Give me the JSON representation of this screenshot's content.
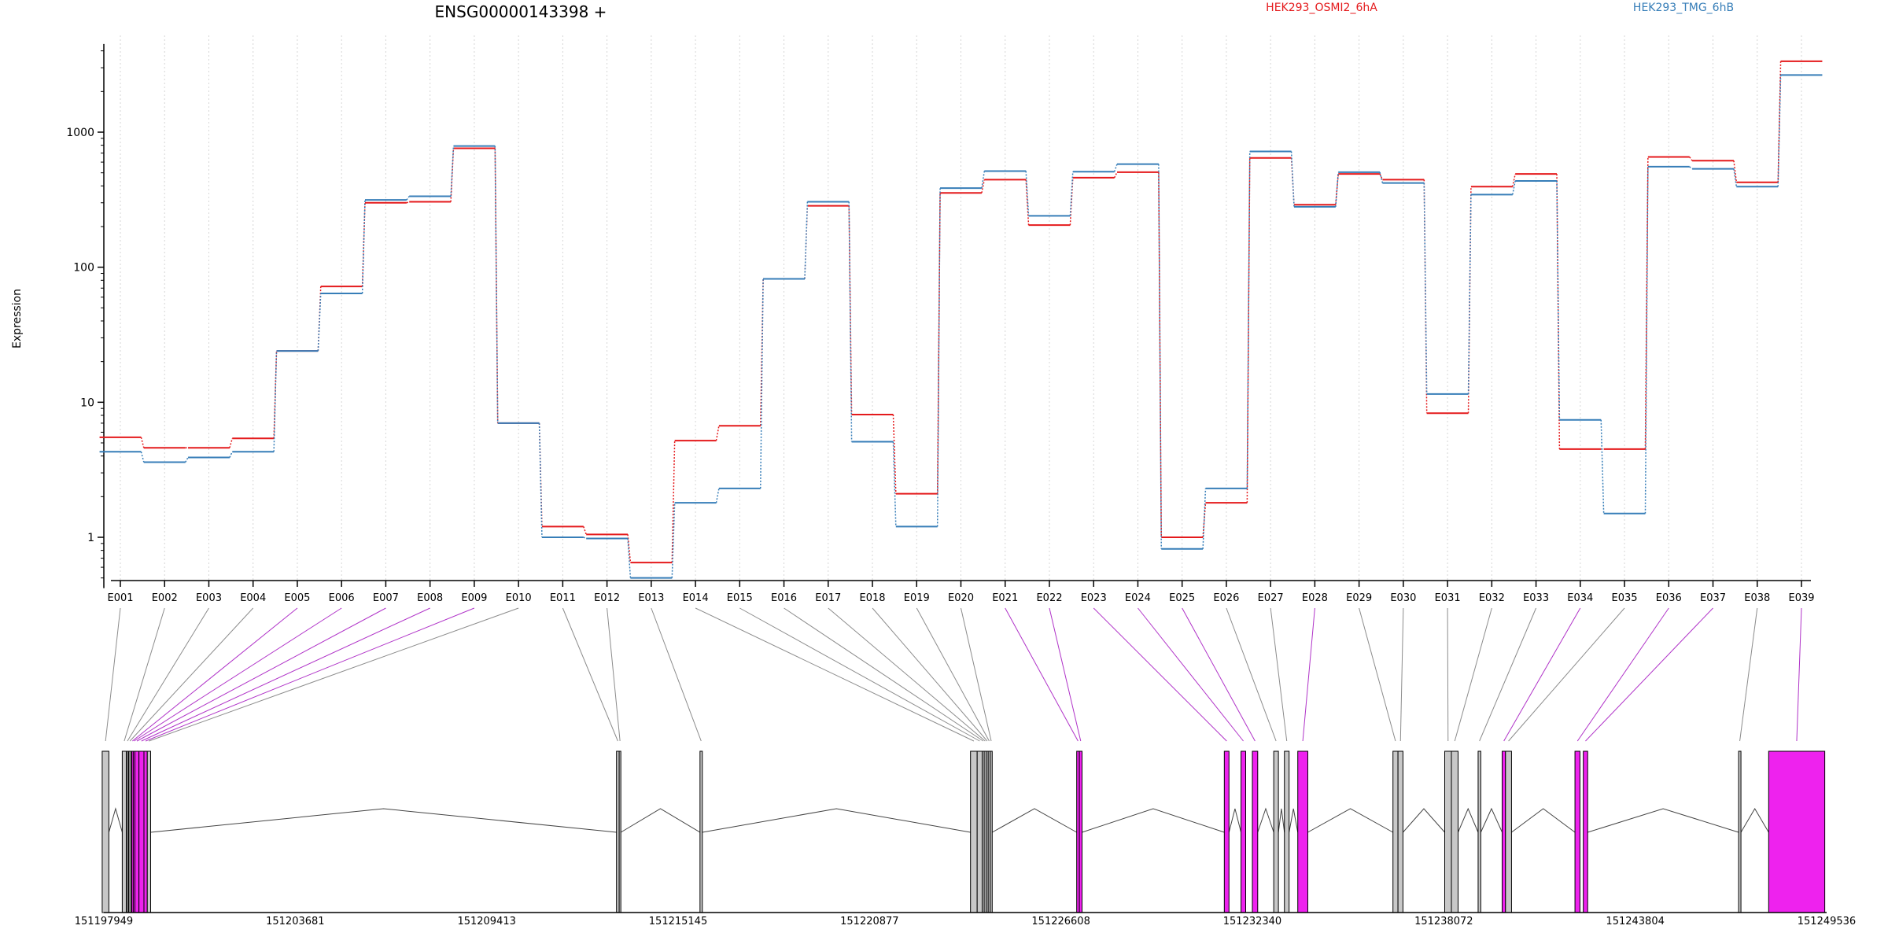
{
  "chart_data": {
    "type": "line",
    "title": "ENSG00000143398 +",
    "ylabel": "Expression",
    "yscale": "log",
    "ylim": [
      0.42,
      4500
    ],
    "yticks": [
      "1",
      "10",
      "100",
      "1000"
    ],
    "grid": "vertical dotted lines at each exon",
    "legend_placement": "top",
    "categories": [
      "E001",
      "E002",
      "E003",
      "E004",
      "E005",
      "E006",
      "E007",
      "E008",
      "E009",
      "E010",
      "E011",
      "E012",
      "E013",
      "E014",
      "E015",
      "E016",
      "E017",
      "E018",
      "E019",
      "E020",
      "E021",
      "E022",
      "E023",
      "E024",
      "E025",
      "E026",
      "E027",
      "E028",
      "E029",
      "E030",
      "E031",
      "E032",
      "E033",
      "E034",
      "E035",
      "E036",
      "E037",
      "E038",
      "E039"
    ],
    "series": [
      {
        "name": "HEK293_OSMI2_6hA",
        "color": "#e41a1c",
        "values": [
          5.5,
          4.6,
          4.6,
          5.4,
          24,
          72,
          300,
          305,
          760,
          7,
          1.2,
          1.05,
          0.65,
          5.2,
          6.7,
          82,
          285,
          8.1,
          2.1,
          355,
          445,
          205,
          460,
          505,
          1.0,
          1.8,
          645,
          290,
          490,
          445,
          8.3,
          395,
          490,
          4.5,
          4.5,
          655,
          615,
          425,
          3350
        ]
      },
      {
        "name": "HEK293_TMG_6hB",
        "color": "#377eb8",
        "values": [
          4.3,
          3.6,
          3.9,
          4.3,
          24,
          64,
          315,
          335,
          790,
          7,
          1.0,
          0.98,
          0.5,
          1.8,
          2.3,
          82,
          305,
          5.1,
          1.2,
          385,
          515,
          240,
          510,
          580,
          0.82,
          2.3,
          720,
          280,
          505,
          420,
          11.5,
          345,
          435,
          7.4,
          1.5,
          555,
          535,
          395,
          2650
        ]
      }
    ],
    "genome": {
      "coordinates": [
        "151197949",
        "151203681",
        "151209413",
        "151215145",
        "151220877",
        "151226608",
        "151232340",
        "151238072",
        "151243804",
        "151249536"
      ],
      "exon_bins": [
        {
          "start": 151197900,
          "end": 151198100,
          "color": "#c8c8c8"
        },
        {
          "start": 151198500,
          "end": 151198620,
          "color": "#c8c8c8"
        },
        {
          "start": 151198630,
          "end": 151198680,
          "color": "#c8c8c8"
        },
        {
          "start": 151198700,
          "end": 151198760,
          "color": "#c8c8c8"
        },
        {
          "start": 151198780,
          "end": 151198830,
          "color": "#ee22ee"
        },
        {
          "start": 151198830,
          "end": 151198880,
          "color": "#ee22ee"
        },
        {
          "start": 151198880,
          "end": 151199000,
          "color": "#ee22ee"
        },
        {
          "start": 151199000,
          "end": 151199150,
          "color": "#ee22ee"
        },
        {
          "start": 151199150,
          "end": 151199250,
          "color": "#ee22ee"
        },
        {
          "start": 151199250,
          "end": 151199350,
          "color": "#c8c8c8"
        },
        {
          "start": 151213300,
          "end": 151213380,
          "color": "#c8c8c8"
        },
        {
          "start": 151213380,
          "end": 151213430,
          "color": "#c8c8c8"
        },
        {
          "start": 151215800,
          "end": 151215870,
          "color": "#c8c8c8"
        },
        {
          "start": 151223900,
          "end": 151224100,
          "color": "#c8c8c8"
        },
        {
          "start": 151224100,
          "end": 151224250,
          "color": "#c8c8c8"
        },
        {
          "start": 151224250,
          "end": 151224310,
          "color": "#c8c8c8"
        },
        {
          "start": 151224310,
          "end": 151224370,
          "color": "#c8c8c8"
        },
        {
          "start": 151224370,
          "end": 151224430,
          "color": "#c8c8c8"
        },
        {
          "start": 151224430,
          "end": 151224490,
          "color": "#c8c8c8"
        },
        {
          "start": 151224490,
          "end": 151224550,
          "color": "#c8c8c8"
        },
        {
          "start": 151227080,
          "end": 151227160,
          "color": "#ee22ee"
        },
        {
          "start": 151227160,
          "end": 151227240,
          "color": "#ee22ee"
        },
        {
          "start": 151231500,
          "end": 151231640,
          "color": "#ee22ee"
        },
        {
          "start": 151232000,
          "end": 151232140,
          "color": "#ee22ee"
        },
        {
          "start": 151232340,
          "end": 151232500,
          "color": "#ee22ee"
        },
        {
          "start": 151232980,
          "end": 151233120,
          "color": "#c8c8c8"
        },
        {
          "start": 151233300,
          "end": 151233440,
          "color": "#c8c8c8"
        },
        {
          "start": 151233700,
          "end": 151234000,
          "color": "#ee22ee"
        },
        {
          "start": 151236550,
          "end": 151236700,
          "color": "#c8c8c8"
        },
        {
          "start": 151236700,
          "end": 151236850,
          "color": "#c8c8c8"
        },
        {
          "start": 151238100,
          "end": 151238300,
          "color": "#c8c8c8"
        },
        {
          "start": 151238300,
          "end": 151238500,
          "color": "#c8c8c8"
        },
        {
          "start": 151239100,
          "end": 151239180,
          "color": "#c8c8c8"
        },
        {
          "start": 151239820,
          "end": 151239920,
          "color": "#ee22ee"
        },
        {
          "start": 151239920,
          "end": 151240100,
          "color": "#c8c8c8"
        },
        {
          "start": 151242000,
          "end": 151242150,
          "color": "#ee22ee"
        },
        {
          "start": 151242250,
          "end": 151242380,
          "color": "#ee22ee"
        },
        {
          "start": 151246900,
          "end": 151246970,
          "color": "#c8c8c8"
        },
        {
          "start": 151247800,
          "end": 151249480,
          "color": "#ee22ee"
        }
      ],
      "introns": [
        [
          151198100,
          151198500
        ],
        [
          151199350,
          151213300
        ],
        [
          151213430,
          151215800
        ],
        [
          151215870,
          151223900
        ],
        [
          151224550,
          151227080
        ],
        [
          151227240,
          151231500
        ],
        [
          151231640,
          151232000
        ],
        [
          151232500,
          151232980
        ],
        [
          151233120,
          151233300
        ],
        [
          151233440,
          151233700
        ],
        [
          151234000,
          151236550
        ],
        [
          151236850,
          151238100
        ],
        [
          151238500,
          151239100
        ],
        [
          151239180,
          151239820
        ],
        [
          151240100,
          151242000
        ],
        [
          151242380,
          151246900
        ],
        [
          151246970,
          151247800
        ]
      ]
    }
  }
}
